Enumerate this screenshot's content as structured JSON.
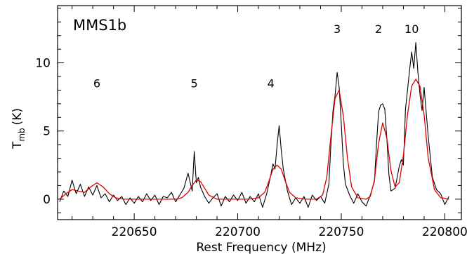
{
  "chart_data": {
    "type": "line",
    "title": "",
    "annotation": "MMS1b",
    "xlabel": "Rest Frequency (MHz)",
    "ylabel": "Tmb (K)",
    "ylabel_parts": {
      "main": "T",
      "sub": "mb",
      "unit": "(K)"
    },
    "xlim": [
      220613,
      220808
    ],
    "ylim": [
      -1.5,
      14.2
    ],
    "xticks": [
      220650,
      220700,
      220750,
      220800
    ],
    "yticks": [
      0,
      5,
      10
    ],
    "grid": false,
    "legend": "none",
    "peak_labels": [
      {
        "text": "6",
        "x": 220632,
        "y": 8.5
      },
      {
        "text": "5",
        "x": 220679,
        "y": 8.5
      },
      {
        "text": "4",
        "x": 220716,
        "y": 8.5
      },
      {
        "text": "3",
        "x": 220748,
        "y": 12.5
      },
      {
        "text": "2",
        "x": 220768,
        "y": 12.5
      },
      {
        "text": "10",
        "x": 220784,
        "y": 12.5
      }
    ],
    "series": [
      {
        "color": "#000000",
        "style": "observed-spectrum",
        "x": [
          220614,
          220616,
          220618,
          220620,
          220622,
          220624,
          220626,
          220628,
          220630,
          220632,
          220634,
          220636,
          220638,
          220640,
          220642,
          220644,
          220646,
          220648,
          220650,
          220652,
          220654,
          220656,
          220658,
          220660,
          220662,
          220664,
          220666,
          220668,
          220670,
          220672,
          220674,
          220676,
          220678,
          220679,
          220680,
          220681,
          220682,
          220684,
          220686,
          220688,
          220690,
          220692,
          220694,
          220696,
          220698,
          220700,
          220702,
          220704,
          220706,
          220708,
          220710,
          220712,
          220714,
          220716,
          220717,
          220718,
          220719,
          220720,
          220721,
          220722,
          220724,
          220726,
          220728,
          220730,
          220732,
          220734,
          220736,
          220738,
          220740,
          220742,
          220744,
          220745,
          220746,
          220747,
          220748,
          220749,
          220750,
          220751,
          220752,
          220754,
          220756,
          220758,
          220760,
          220762,
          220764,
          220766,
          220767,
          220768,
          220769,
          220770,
          220771,
          220772,
          220773,
          220774,
          220776,
          220778,
          220779,
          220780,
          220781,
          220782,
          220783,
          220784,
          220785,
          220786,
          220787,
          220788,
          220789,
          220790,
          220792,
          220794,
          220796,
          220798,
          220800,
          220802
        ],
        "y": [
          -0.2,
          0.6,
          0.2,
          1.4,
          0.4,
          1.1,
          0.2,
          0.9,
          0.3,
          1.0,
          0.1,
          0.4,
          -0.2,
          0.3,
          -0.1,
          0.2,
          -0.4,
          0.1,
          -0.3,
          0.2,
          -0.2,
          0.4,
          -0.1,
          0.3,
          -0.4,
          0.2,
          0.1,
          0.5,
          -0.2,
          0.3,
          0.8,
          1.9,
          0.6,
          3.5,
          1.2,
          1.6,
          0.9,
          0.2,
          -0.3,
          0.1,
          0.4,
          -0.5,
          0.2,
          -0.2,
          0.3,
          -0.1,
          0.5,
          -0.3,
          0.2,
          -0.2,
          0.4,
          -0.6,
          0.4,
          1.8,
          2.6,
          2.2,
          4.0,
          5.4,
          3.6,
          2.2,
          0.6,
          -0.4,
          0.1,
          -0.3,
          0.2,
          -0.6,
          0.3,
          -0.1,
          0.2,
          -0.3,
          1.1,
          4.0,
          6.5,
          7.6,
          9.3,
          8.2,
          5.5,
          2.6,
          1.1,
          0.3,
          -0.3,
          0.4,
          -0.2,
          -0.5,
          0.3,
          1.3,
          4.0,
          6.4,
          6.9,
          7.0,
          6.6,
          4.5,
          1.8,
          0.6,
          0.8,
          2.4,
          2.9,
          2.5,
          6.6,
          8.0,
          9.5,
          10.8,
          9.6,
          11.5,
          9.3,
          7.7,
          6.5,
          8.2,
          4.6,
          1.6,
          0.7,
          0.4,
          -0.4,
          0.2
        ]
      },
      {
        "color": "#e00000",
        "style": "gaussian-fit",
        "x": [
          220614,
          220617,
          220620,
          220623,
          220626,
          220629,
          220632,
          220635,
          220638,
          220641,
          220645,
          220650,
          220655,
          220660,
          220665,
          220670,
          220673,
          220676,
          220678,
          220680,
          220682,
          220684,
          220686,
          220690,
          220700,
          220705,
          220710,
          220713,
          220715,
          220717,
          220719,
          220721,
          220723,
          220725,
          220728,
          220733,
          220738,
          220741,
          220743,
          220745,
          220747,
          220749,
          220751,
          220753,
          220755,
          220758,
          220762,
          220764,
          220766,
          220768,
          220770,
          220772,
          220774,
          220776,
          220778,
          220780,
          220782,
          220784,
          220786,
          220788,
          220790,
          220792,
          220795,
          220798,
          220802
        ],
        "y": [
          0.0,
          0.4,
          0.7,
          0.6,
          0.5,
          0.9,
          1.2,
          0.9,
          0.4,
          0.1,
          0.0,
          0.0,
          0.0,
          0.0,
          0.0,
          0.0,
          0.1,
          0.5,
          1.0,
          1.4,
          1.3,
          0.8,
          0.3,
          0.0,
          0.0,
          0.0,
          0.1,
          0.5,
          1.3,
          2.2,
          2.5,
          2.2,
          1.3,
          0.5,
          0.1,
          0.0,
          0.0,
          0.3,
          1.6,
          4.6,
          7.4,
          8.0,
          6.1,
          3.0,
          0.9,
          0.1,
          0.0,
          0.2,
          1.4,
          4.1,
          5.6,
          4.5,
          2.1,
          0.9,
          1.2,
          3.2,
          6.2,
          8.3,
          8.8,
          8.3,
          6.2,
          3.0,
          0.7,
          0.1,
          0.0
        ]
      }
    ]
  }
}
